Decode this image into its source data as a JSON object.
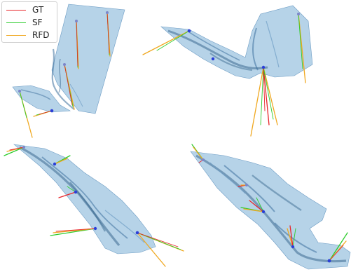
{
  "legend": {
    "items": [
      {
        "label": "GT",
        "color": "#e8262b"
      },
      {
        "label": "SF",
        "color": "#2ecc2e"
      },
      {
        "label": "RFD",
        "color": "#f0a820"
      }
    ]
  },
  "colors": {
    "surface_fill": "#8fb8d8",
    "surface_edge": "#5f8fb8",
    "surface_dark": "#2f5f88",
    "point": "#2b3fd8",
    "point_light": "#7c86c9"
  },
  "panels": [
    "top-left",
    "top-right",
    "bottom-left",
    "bottom-right"
  ]
}
